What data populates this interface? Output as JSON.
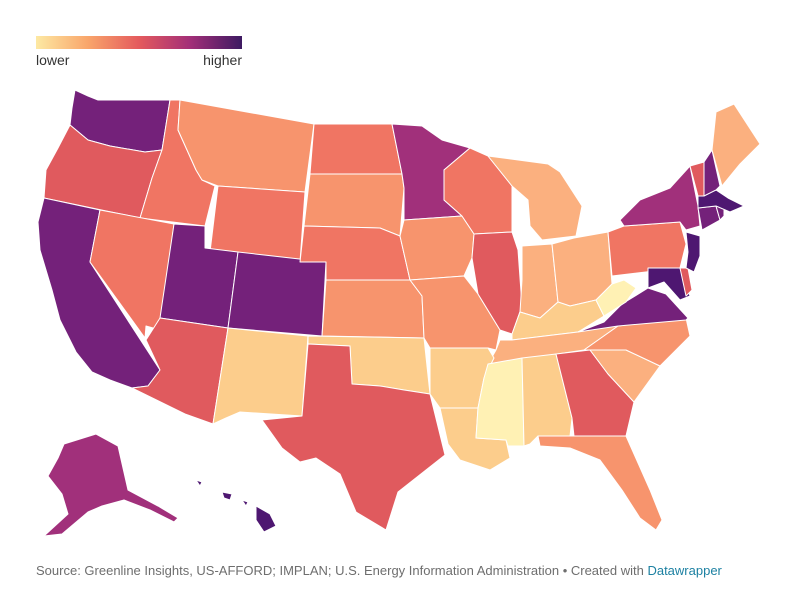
{
  "legend": {
    "low_label": "lower",
    "high_label": "higher",
    "gradient": [
      "#fde9a3",
      "#f9a66b",
      "#e45a5d",
      "#a22e78",
      "#3d1a62"
    ]
  },
  "map": {
    "background": "#ffffff",
    "levels": {
      "very_low": "#fff1b4",
      "low": "#fccd8c",
      "low_mid": "#fbb07f",
      "mid": "#f7946d",
      "mid_high": "#f07563",
      "high": "#e05a5e",
      "higher": "#a1307b",
      "very_high": "#74217a",
      "highest": "#4e1771"
    }
  },
  "footer": {
    "source_text": "Source: Greenline Insights, US-AFFORD; IMPLAN; U.S. Energy Information Administration • Created with ",
    "link_text": "Datawrapper"
  }
}
